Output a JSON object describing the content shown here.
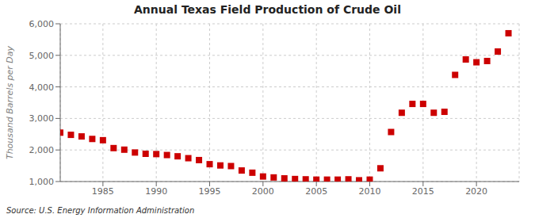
{
  "chart_data": {
    "type": "scatter",
    "title": "Annual Texas Field Production of Crude Oil",
    "ylabel": "Thousand Barrels per Day",
    "source": "Source: U.S. Energy Information Administration",
    "x": [
      1981,
      1982,
      1983,
      1984,
      1985,
      1986,
      1987,
      1988,
      1989,
      1990,
      1991,
      1992,
      1993,
      1994,
      1995,
      1996,
      1997,
      1998,
      1999,
      2000,
      2001,
      2002,
      2003,
      2004,
      2005,
      2006,
      2007,
      2008,
      2009,
      2010,
      2011,
      2012,
      2013,
      2014,
      2015,
      2016,
      2017,
      2018,
      2019,
      2020,
      2021,
      2022,
      2023
    ],
    "values": [
      2550,
      2480,
      2430,
      2350,
      2310,
      2060,
      2010,
      1920,
      1880,
      1870,
      1840,
      1800,
      1740,
      1680,
      1550,
      1510,
      1490,
      1350,
      1280,
      1160,
      1130,
      1100,
      1080,
      1070,
      1060,
      1060,
      1060,
      1070,
      1040,
      1060,
      1420,
      2570,
      3180,
      3460,
      3460,
      3180,
      3210,
      4380,
      4870,
      4780,
      4820,
      5120,
      5700
    ],
    "color": "#cc0000",
    "marker": "square",
    "xlim": [
      1981,
      2024
    ],
    "xticks": [
      1985,
      1990,
      1995,
      2000,
      2005,
      2010,
      2015,
      2020
    ],
    "ylim": [
      1000,
      6000
    ],
    "yticks": [
      {
        "value": 1000,
        "label": "1,000"
      },
      {
        "value": 2000,
        "label": "2,000"
      },
      {
        "value": 3000,
        "label": "3,000"
      },
      {
        "value": 4000,
        "label": "4,000"
      },
      {
        "value": 5000,
        "label": "5,000"
      },
      {
        "value": 6000,
        "label": "6,000"
      }
    ],
    "grid": true
  }
}
